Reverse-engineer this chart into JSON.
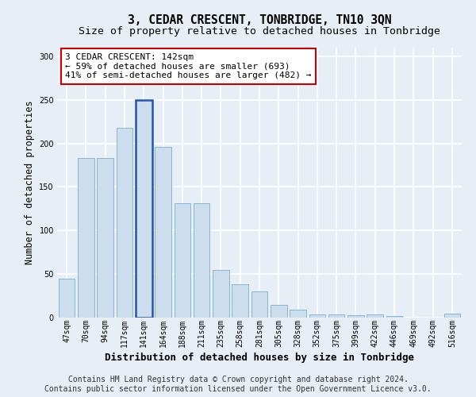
{
  "title": "3, CEDAR CRESCENT, TONBRIDGE, TN10 3QN",
  "subtitle": "Size of property relative to detached houses in Tonbridge",
  "xlabel": "Distribution of detached houses by size in Tonbridge",
  "ylabel": "Number of detached properties",
  "categories": [
    "47sqm",
    "70sqm",
    "94sqm",
    "117sqm",
    "141sqm",
    "164sqm",
    "188sqm",
    "211sqm",
    "235sqm",
    "258sqm",
    "281sqm",
    "305sqm",
    "328sqm",
    "352sqm",
    "375sqm",
    "399sqm",
    "422sqm",
    "446sqm",
    "469sqm",
    "492sqm",
    "516sqm"
  ],
  "values": [
    45,
    183,
    183,
    218,
    250,
    196,
    131,
    131,
    55,
    38,
    30,
    15,
    9,
    4,
    4,
    3,
    4,
    2,
    0,
    0,
    5
  ],
  "highlight_index": 4,
  "bar_color": "#ccdded",
  "bar_edge_color": "#7aadcc",
  "highlight_bar_edge_color": "#2255aa",
  "annotation_text": "3 CEDAR CRESCENT: 142sqm\n← 59% of detached houses are smaller (693)\n41% of semi-detached houses are larger (482) →",
  "annotation_box_facecolor": "#ffffff",
  "annotation_box_edgecolor": "#cc0000",
  "ylim": [
    0,
    310
  ],
  "yticks": [
    0,
    50,
    100,
    150,
    200,
    250,
    300
  ],
  "footer_line1": "Contains HM Land Registry data © Crown copyright and database right 2024.",
  "footer_line2": "Contains public sector information licensed under the Open Government Licence v3.0.",
  "bg_color": "#e8eef5",
  "plot_bg_color": "#e8eef5",
  "grid_color": "#ffffff",
  "title_fontsize": 10.5,
  "subtitle_fontsize": 9.5,
  "axis_label_fontsize": 8.5,
  "xlabel_fontsize": 9,
  "tick_fontsize": 7,
  "annotation_fontsize": 8,
  "footer_fontsize": 7
}
